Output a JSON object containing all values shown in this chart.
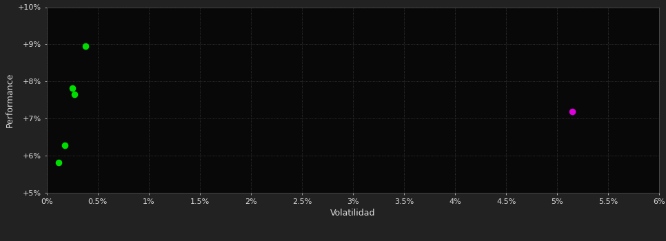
{
  "background_color": "#222222",
  "plot_bg_color": "#080808",
  "grid_color": "#404040",
  "text_color": "#dddddd",
  "xlabel": "Volatilidad",
  "ylabel": "Performance",
  "xlim": [
    0,
    6.0
  ],
  "ylim": [
    5.0,
    10.0
  ],
  "green_points": [
    [
      0.38,
      8.95
    ],
    [
      0.25,
      7.82
    ],
    [
      0.27,
      7.65
    ],
    [
      0.18,
      6.28
    ],
    [
      0.12,
      5.82
    ]
  ],
  "magenta_points": [
    [
      5.15,
      7.18
    ]
  ],
  "point_size": 35,
  "green_color": "#00dd00",
  "magenta_color": "#dd00dd"
}
